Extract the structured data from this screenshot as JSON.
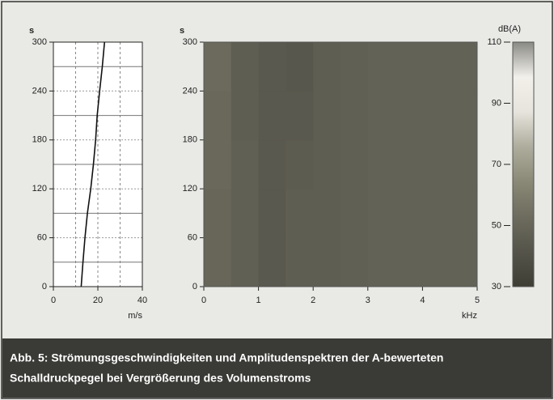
{
  "chart_data": [
    {
      "type": "line",
      "y_label": "s",
      "x_label": "m/s",
      "color": "#111",
      "x": [
        12.5,
        13.3,
        14.2,
        15.3,
        16.8,
        18.0,
        19.0,
        19.7,
        20.8,
        22.0,
        23.0
      ],
      "values": [
        0,
        30,
        60,
        90,
        120,
        150,
        180,
        210,
        240,
        270,
        300
      ],
      "xlim": [
        0,
        40
      ],
      "xticks": [
        0,
        20,
        40
      ],
      "ylim": [
        0,
        300
      ],
      "yticks": [
        0,
        60,
        120,
        180,
        240,
        300
      ],
      "grid": true
    },
    {
      "type": "heatmap",
      "y_label": "s",
      "x_label": "kHz",
      "z_label": "dB(A)",
      "x_bins": [
        0,
        0.5,
        1,
        1.5,
        2,
        2.5,
        3,
        3.5,
        4,
        4.5,
        5
      ],
      "y_bins": [
        0,
        60,
        120,
        180,
        240,
        300
      ],
      "values": [
        [
          50,
          47,
          44,
          46,
          46,
          47,
          48,
          48,
          48,
          48
        ],
        [
          50,
          47,
          44,
          46,
          46,
          47,
          48,
          48,
          48,
          48
        ],
        [
          51,
          47,
          44,
          45,
          46,
          47,
          48,
          48,
          48,
          48
        ],
        [
          51,
          46,
          44,
          44,
          46,
          47,
          48,
          48,
          48,
          48
        ],
        [
          52,
          46,
          44,
          43,
          46,
          47,
          48,
          48,
          48,
          48
        ]
      ],
      "xlim": [
        0,
        5
      ],
      "xticks": [
        0,
        1,
        2,
        3,
        4,
        5
      ],
      "ylim": [
        0,
        300
      ],
      "yticks": [
        0,
        60,
        120,
        180,
        240,
        300
      ],
      "zlim": [
        30,
        110
      ],
      "zticks": [
        30,
        50,
        70,
        90,
        110
      ],
      "colorscale": [
        "#3e3e34",
        "#55544a",
        "#6d6c5e",
        "#8a8876",
        "#aeac9c",
        "#e6e4dc",
        "#f2f0ea",
        "#8a8a84"
      ]
    }
  ],
  "caption": [
    "Abb. 5: Strömungsgeschwindigkeiten und Amplitudenspektren der A-bewerteten",
    "Schalldruckpegel bei Vergrößerung des Volumenstroms"
  ]
}
